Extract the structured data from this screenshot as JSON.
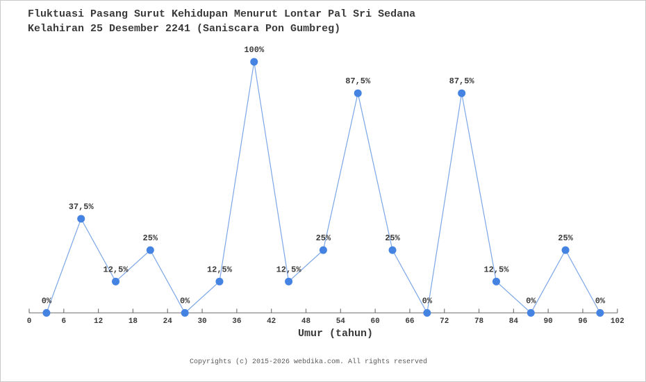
{
  "header": {
    "title_line1": "Fluktuasi Pasang Surut Kehidupan Menurut Lontar Pal Sri Sedana",
    "title_line2": "Kelahiran 25 Desember 2241 (Saniscara Pon Gumbreg)"
  },
  "footer": {
    "copyright": "Copyrights (c) 2015-2026 webdika.com. All rights reserved"
  },
  "chart_data": {
    "type": "line",
    "title": "Fluktuasi Pasang Surut Kehidupan Menurut Lontar Pal Sri Sedana Kelahiran 25 Desember 2241 (Saniscara Pon Gumbreg)",
    "xlabel": "Umur (tahun)",
    "ylabel": "",
    "x": [
      3,
      9,
      15,
      21,
      27,
      33,
      39,
      45,
      51,
      57,
      63,
      69,
      75,
      81,
      87,
      93,
      99
    ],
    "values": [
      0,
      37.5,
      12.5,
      25,
      0,
      12.5,
      100,
      12.5,
      25,
      87.5,
      25,
      0,
      87.5,
      12.5,
      0,
      25,
      0
    ],
    "point_labels": [
      "0%",
      "37,5%",
      "12,5%",
      "25%",
      "0%",
      "12,5%",
      "100%",
      "12,5%",
      "25%",
      "87,5%",
      "25%",
      "0%",
      "87,5%",
      "12,5%",
      "0%",
      "25%",
      "0%"
    ],
    "x_ticks": [
      0,
      6,
      12,
      18,
      24,
      30,
      36,
      42,
      48,
      54,
      60,
      66,
      72,
      78,
      84,
      90,
      96,
      102
    ],
    "xlim": [
      0,
      102
    ],
    "ylim": [
      0,
      100
    ],
    "grid": false,
    "legend": false,
    "colors": {
      "marker": "#4583e2",
      "line": "#7ba6e6",
      "axis": "#8a8a8a",
      "tick": "#777777",
      "text": "#3a3a3a",
      "footer_text": "#5a5a5a"
    }
  }
}
